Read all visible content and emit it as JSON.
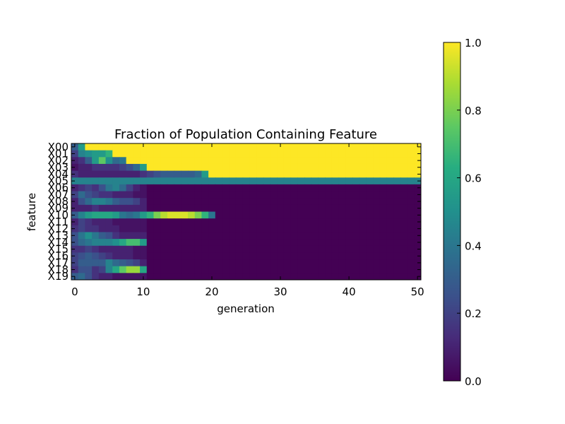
{
  "chart_data": {
    "type": "heatmap",
    "title": "Fraction of Population Containing Feature",
    "xlabel": "generation",
    "ylabel": "feature",
    "x_ticks": [
      0,
      10,
      20,
      30,
      40,
      50
    ],
    "xlim": [
      -0.5,
      50.5
    ],
    "rows": [
      "X00",
      "X01",
      "X02",
      "X03",
      "X04",
      "X05",
      "X06",
      "X07",
      "X08",
      "X09",
      "X10",
      "X11",
      "X12",
      "X13",
      "X14",
      "X15",
      "X16",
      "X17",
      "X18",
      "X19"
    ],
    "colormap": "viridis",
    "colorbar": {
      "range": [
        0.0,
        1.0
      ],
      "ticks": [
        "0.0",
        "0.2",
        "0.4",
        "0.6",
        "0.8",
        "1.0"
      ]
    },
    "row_profiles": [
      {
        "row": "X00",
        "saturate_from_generation": 2,
        "early_values": [
          0.3,
          0.55,
          0.9
        ]
      },
      {
        "row": "X01",
        "saturate_from_generation": 6,
        "early_values": [
          0.2,
          0.45,
          0.5,
          0.55,
          0.55,
          0.65
        ]
      },
      {
        "row": "X02",
        "saturate_from_generation": 8,
        "early_values": [
          0.1,
          0.15,
          0.3,
          0.55,
          0.75,
          0.5,
          0.35,
          0.4
        ]
      },
      {
        "row": "X03",
        "saturate_from_generation": 11,
        "early_values": [
          0.05,
          0.1,
          0.1,
          0.15,
          0.15,
          0.15,
          0.15,
          0.2,
          0.25,
          0.35,
          0.55
        ]
      },
      {
        "row": "X04",
        "saturate_from_generation": 20,
        "early_values": [
          0.15,
          0.1,
          0.1,
          0.1,
          0.1,
          0.1,
          0.1,
          0.1,
          0.1,
          0.1,
          0.15,
          0.2,
          0.25,
          0.3,
          0.3,
          0.3,
          0.3,
          0.3,
          0.35,
          0.55
        ]
      },
      {
        "row": "X05",
        "saturate_from_generation": 51,
        "constant_value": 0.45
      },
      {
        "row": "X06",
        "saturate_from_generation": 51,
        "early_values": [
          0.1,
          0.15,
          0.2,
          0.15,
          0.25,
          0.4,
          0.45,
          0.35,
          0.2,
          0.1,
          0.05
        ]
      },
      {
        "row": "X07",
        "saturate_from_generation": 51,
        "early_values": [
          0.2,
          0.35,
          0.25,
          0.2,
          0.15,
          0.15,
          0.1,
          0.1,
          0.1,
          0.05,
          0.05
        ]
      },
      {
        "row": "X08",
        "saturate_from_generation": 51,
        "early_values": [
          0.1,
          0.25,
          0.35,
          0.45,
          0.45,
          0.4,
          0.3,
          0.25,
          0.25,
          0.2,
          0.1
        ]
      },
      {
        "row": "X09",
        "saturate_from_generation": 51,
        "early_values": [
          0.1,
          0.1,
          0.1,
          0.15,
          0.1,
          0.1,
          0.1,
          0.1,
          0.1,
          0.1,
          0.1
        ]
      },
      {
        "row": "X10",
        "saturate_from_generation": 51,
        "early_values": [
          0.3,
          0.45,
          0.55,
          0.6,
          0.6,
          0.6,
          0.55,
          0.4,
          0.35,
          0.4,
          0.55,
          0.65,
          0.8,
          0.9,
          0.95,
          0.95,
          0.95,
          0.9,
          0.8,
          0.65,
          0.4
        ]
      },
      {
        "row": "X11",
        "saturate_from_generation": 51,
        "early_values": [
          0.1,
          0.2,
          0.15,
          0.1,
          0.1,
          0.1,
          0.05,
          0.05,
          0.05,
          0.05,
          0.05
        ]
      },
      {
        "row": "X12",
        "saturate_from_generation": 51,
        "early_values": [
          0.15,
          0.2,
          0.15,
          0.15,
          0.1,
          0.1,
          0.1,
          0.05,
          0.05,
          0.05,
          0.05
        ]
      },
      {
        "row": "X13",
        "saturate_from_generation": 51,
        "early_values": [
          0.25,
          0.4,
          0.5,
          0.4,
          0.3,
          0.25,
          0.15,
          0.1,
          0.1,
          0.1,
          0.1
        ]
      },
      {
        "row": "X14",
        "saturate_from_generation": 51,
        "early_values": [
          0.25,
          0.35,
          0.4,
          0.45,
          0.45,
          0.45,
          0.5,
          0.6,
          0.7,
          0.7,
          0.55
        ]
      },
      {
        "row": "X15",
        "saturate_from_generation": 51,
        "early_values": [
          0.15,
          0.15,
          0.2,
          0.15,
          0.1,
          0.1,
          0.1,
          0.1,
          0.1,
          0.05,
          0.05
        ]
      },
      {
        "row": "X16",
        "saturate_from_generation": 51,
        "early_values": [
          0.2,
          0.25,
          0.3,
          0.25,
          0.2,
          0.15,
          0.1,
          0.1,
          0.1,
          0.05,
          0.05
        ]
      },
      {
        "row": "X17",
        "saturate_from_generation": 51,
        "early_values": [
          0.2,
          0.3,
          0.3,
          0.3,
          0.3,
          0.45,
          0.35,
          0.3,
          0.25,
          0.2,
          0.1
        ]
      },
      {
        "row": "X18",
        "saturate_from_generation": 51,
        "early_values": [
          0.15,
          0.25,
          0.25,
          0.15,
          0.2,
          0.45,
          0.6,
          0.75,
          0.85,
          0.85,
          0.6
        ]
      },
      {
        "row": "X19",
        "saturate_from_generation": 51,
        "early_values": [
          0.3,
          0.35,
          0.25,
          0.15,
          0.1,
          0.1,
          0.05,
          0.05,
          0.05,
          0.05,
          0.05
        ]
      }
    ]
  }
}
